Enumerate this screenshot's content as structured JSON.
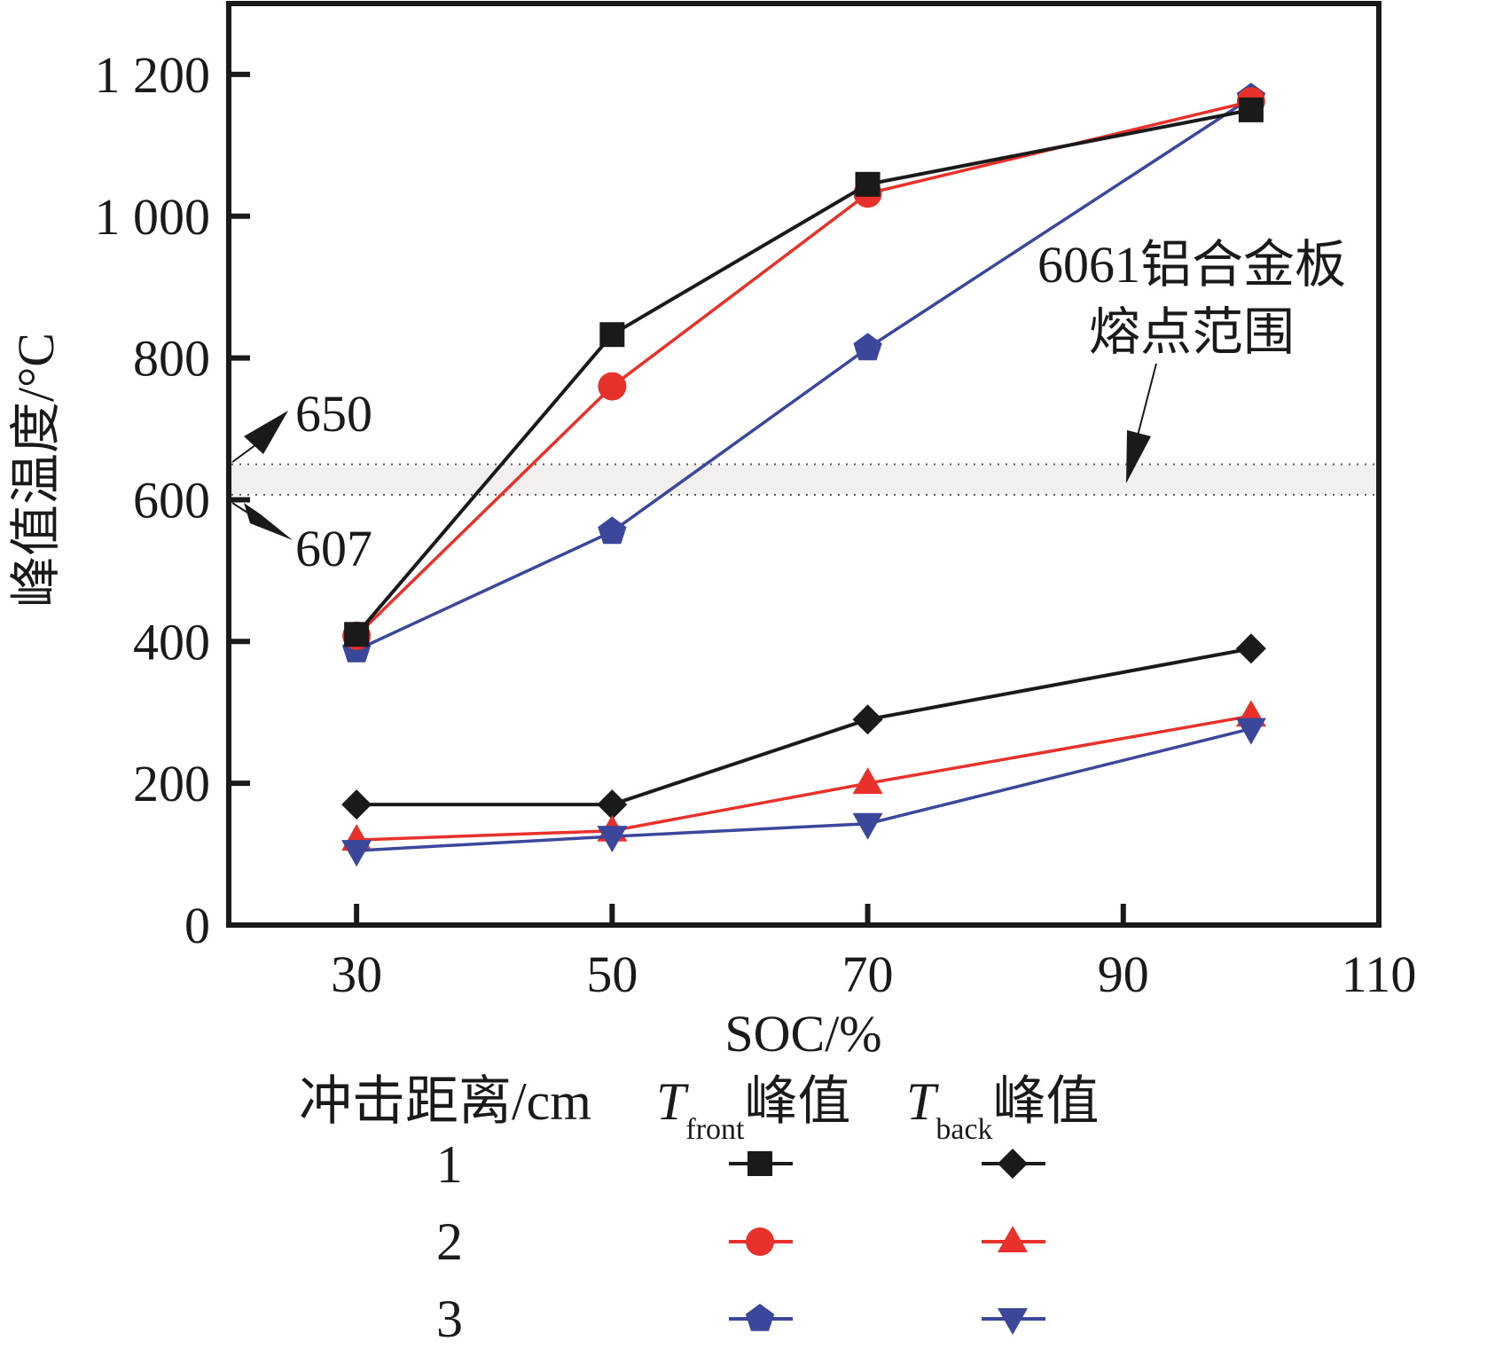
{
  "chart_data": {
    "type": "line",
    "title": "",
    "xlabel": "SOC/%",
    "ylabel": "峰值温度/°C",
    "xlim": [
      20,
      110
    ],
    "ylim": [
      0,
      1300
    ],
    "grid": false,
    "x_ticks": [
      30,
      50,
      70,
      90,
      110
    ],
    "x_tick_labels": [
      "30",
      "50",
      "70",
      "90",
      "110"
    ],
    "y_ticks": [
      0,
      200,
      400,
      600,
      800,
      1000,
      1200
    ],
    "y_tick_labels": [
      "0",
      "200",
      "400",
      "600",
      "800",
      "1 000",
      "1 200"
    ],
    "x": [
      30,
      50,
      70,
      100
    ],
    "series": [
      {
        "name": "T_front峰值 1 cm",
        "distance": "1",
        "group": "front",
        "color": "#1a1a1a",
        "marker": "square",
        "values": [
          410,
          833,
          1045,
          1150
        ]
      },
      {
        "name": "T_front峰值 2 cm",
        "distance": "2",
        "group": "front",
        "color": "#e8312a",
        "marker": "circle",
        "values": [
          408,
          760,
          1032,
          1162
        ]
      },
      {
        "name": "T_front峰值 3 cm",
        "distance": "3",
        "group": "front",
        "color": "#3a479a",
        "marker": "pentagon",
        "values": [
          388,
          555,
          814,
          1167
        ]
      },
      {
        "name": "T_back峰值 1 cm",
        "distance": "1",
        "group": "back",
        "color": "#1a1a1a",
        "marker": "diamond",
        "values": [
          170,
          170,
          290,
          390
        ]
      },
      {
        "name": "T_back峰值 2 cm",
        "distance": "2",
        "group": "back",
        "color": "#e8312a",
        "marker": "triangle-up",
        "values": [
          120,
          133,
          200,
          295
        ]
      },
      {
        "name": "T_back峰值 3 cm",
        "distance": "3",
        "group": "back",
        "color": "#3a479a",
        "marker": "triangle-down",
        "values": [
          105,
          125,
          143,
          277
        ]
      }
    ],
    "band": {
      "low": 607,
      "high": 650,
      "fill": "#f2efee",
      "line_style": "dotted"
    },
    "annotations": [
      {
        "text": "650",
        "refers_to": 650
      },
      {
        "text": "607",
        "refers_to": 607
      },
      {
        "lines": [
          "6061铝合金板",
          "熔点范围"
        ],
        "refers_to": "band"
      }
    ],
    "legend": {
      "placement": "bottom",
      "header_distance": "冲击距离/cm",
      "header_front_main": "T",
      "header_front_sub": "front",
      "header_front_suffix": "峰值",
      "header_back_main": "T",
      "header_back_sub": "back",
      "header_back_suffix": "峰值",
      "rows": [
        "1",
        "2",
        "3"
      ]
    }
  }
}
